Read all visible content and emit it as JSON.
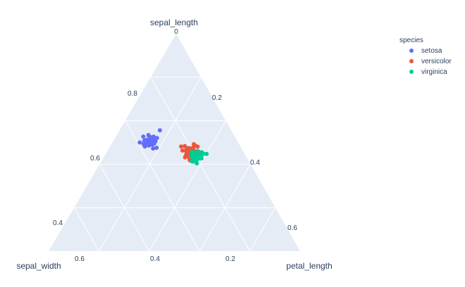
{
  "chart_data": {
    "type": "scatter",
    "subtype": "ternary",
    "axes": {
      "a": {
        "title": "sepal_length",
        "ticks": [
          "0",
          "0.2",
          "0.4",
          "0.6",
          "0.8"
        ],
        "tick_values": [
          0,
          0.2,
          0.4,
          0.6,
          0.8
        ]
      },
      "b": {
        "title": "sepal_width",
        "ticks": [
          "0.4",
          "0.6"
        ],
        "tick_values": [
          0.4,
          0.6
        ]
      },
      "c": {
        "title": "petal_length",
        "ticks": [
          "0.2",
          "0.4",
          "0.6"
        ],
        "tick_values": [
          0.2,
          0.4,
          0.6
        ]
      },
      "bottom_ticks": [
        "0.6",
        "0.4",
        "0.2"
      ]
    },
    "grid": true,
    "background_color": "#E5ECF6",
    "legend": {
      "title": "species",
      "placement": "top-right",
      "entries": [
        {
          "name": "setosa",
          "color": "#636EFA"
        },
        {
          "name": "versicolor",
          "color": "#EF553B"
        },
        {
          "name": "virginica",
          "color": "#00CC96"
        }
      ]
    },
    "series": [
      {
        "name": "setosa",
        "color": "#636EFA",
        "points": [
          {
            "a": 0.51,
            "b": 0.35,
            "c": 0.14
          },
          {
            "a": 0.49,
            "b": 0.3,
            "c": 0.14
          },
          {
            "a": 0.47,
            "b": 0.32,
            "c": 0.13
          },
          {
            "a": 0.46,
            "b": 0.31,
            "c": 0.15
          },
          {
            "a": 0.5,
            "b": 0.36,
            "c": 0.14
          },
          {
            "a": 0.54,
            "b": 0.39,
            "c": 0.17
          },
          {
            "a": 0.46,
            "b": 0.34,
            "c": 0.14
          },
          {
            "a": 0.5,
            "b": 0.34,
            "c": 0.15
          },
          {
            "a": 0.44,
            "b": 0.29,
            "c": 0.14
          },
          {
            "a": 0.49,
            "b": 0.31,
            "c": 0.15
          },
          {
            "a": 0.54,
            "b": 0.37,
            "c": 0.15
          },
          {
            "a": 0.48,
            "b": 0.34,
            "c": 0.16
          },
          {
            "a": 0.48,
            "b": 0.3,
            "c": 0.14
          },
          {
            "a": 0.43,
            "b": 0.3,
            "c": 0.11
          },
          {
            "a": 0.58,
            "b": 0.4,
            "c": 0.12
          },
          {
            "a": 0.57,
            "b": 0.44,
            "c": 0.15
          },
          {
            "a": 0.54,
            "b": 0.39,
            "c": 0.13
          },
          {
            "a": 0.51,
            "b": 0.35,
            "c": 0.14
          },
          {
            "a": 0.57,
            "b": 0.38,
            "c": 0.17
          },
          {
            "a": 0.51,
            "b": 0.38,
            "c": 0.15
          },
          {
            "a": 0.54,
            "b": 0.34,
            "c": 0.17
          },
          {
            "a": 0.51,
            "b": 0.37,
            "c": 0.15
          },
          {
            "a": 0.46,
            "b": 0.36,
            "c": 0.1
          },
          {
            "a": 0.51,
            "b": 0.33,
            "c": 0.17
          },
          {
            "a": 0.48,
            "b": 0.34,
            "c": 0.19
          },
          {
            "a": 0.5,
            "b": 0.3,
            "c": 0.16
          },
          {
            "a": 0.5,
            "b": 0.34,
            "c": 0.16
          },
          {
            "a": 0.52,
            "b": 0.35,
            "c": 0.15
          },
          {
            "a": 0.52,
            "b": 0.34,
            "c": 0.14
          },
          {
            "a": 0.47,
            "b": 0.32,
            "c": 0.16
          },
          {
            "a": 0.48,
            "b": 0.31,
            "c": 0.16
          },
          {
            "a": 0.54,
            "b": 0.34,
            "c": 0.15
          },
          {
            "a": 0.52,
            "b": 0.41,
            "c": 0.15
          },
          {
            "a": 0.55,
            "b": 0.42,
            "c": 0.14
          },
          {
            "a": 0.49,
            "b": 0.31,
            "c": 0.15
          },
          {
            "a": 0.5,
            "b": 0.32,
            "c": 0.12
          },
          {
            "a": 0.55,
            "b": 0.35,
            "c": 0.13
          },
          {
            "a": 0.49,
            "b": 0.36,
            "c": 0.14
          },
          {
            "a": 0.44,
            "b": 0.3,
            "c": 0.13
          },
          {
            "a": 0.51,
            "b": 0.34,
            "c": 0.15
          },
          {
            "a": 0.5,
            "b": 0.35,
            "c": 0.13
          },
          {
            "a": 0.45,
            "b": 0.23,
            "c": 0.13
          },
          {
            "a": 0.44,
            "b": 0.32,
            "c": 0.13
          },
          {
            "a": 0.5,
            "b": 0.35,
            "c": 0.16
          },
          {
            "a": 0.51,
            "b": 0.38,
            "c": 0.19
          },
          {
            "a": 0.48,
            "b": 0.3,
            "c": 0.14
          },
          {
            "a": 0.51,
            "b": 0.38,
            "c": 0.16
          },
          {
            "a": 0.46,
            "b": 0.32,
            "c": 0.14
          },
          {
            "a": 0.53,
            "b": 0.37,
            "c": 0.15
          },
          {
            "a": 0.5,
            "b": 0.33,
            "c": 0.14
          }
        ]
      },
      {
        "name": "versicolor",
        "color": "#EF553B",
        "points": [
          {
            "a": 0.7,
            "b": 0.32,
            "c": 0.47
          },
          {
            "a": 0.64,
            "b": 0.32,
            "c": 0.45
          },
          {
            "a": 0.69,
            "b": 0.31,
            "c": 0.49
          },
          {
            "a": 0.55,
            "b": 0.23,
            "c": 0.4
          },
          {
            "a": 0.65,
            "b": 0.28,
            "c": 0.46
          },
          {
            "a": 0.57,
            "b": 0.28,
            "c": 0.45
          },
          {
            "a": 0.63,
            "b": 0.33,
            "c": 0.47
          },
          {
            "a": 0.49,
            "b": 0.24,
            "c": 0.33
          },
          {
            "a": 0.66,
            "b": 0.29,
            "c": 0.46
          },
          {
            "a": 0.52,
            "b": 0.27,
            "c": 0.39
          },
          {
            "a": 0.5,
            "b": 0.2,
            "c": 0.35
          },
          {
            "a": 0.59,
            "b": 0.3,
            "c": 0.42
          },
          {
            "a": 0.6,
            "b": 0.22,
            "c": 0.4
          },
          {
            "a": 0.61,
            "b": 0.29,
            "c": 0.47
          },
          {
            "a": 0.56,
            "b": 0.29,
            "c": 0.36
          },
          {
            "a": 0.67,
            "b": 0.31,
            "c": 0.44
          },
          {
            "a": 0.56,
            "b": 0.3,
            "c": 0.45
          },
          {
            "a": 0.58,
            "b": 0.27,
            "c": 0.41
          },
          {
            "a": 0.62,
            "b": 0.22,
            "c": 0.45
          },
          {
            "a": 0.56,
            "b": 0.25,
            "c": 0.39
          },
          {
            "a": 0.59,
            "b": 0.32,
            "c": 0.48
          },
          {
            "a": 0.61,
            "b": 0.28,
            "c": 0.4
          },
          {
            "a": 0.63,
            "b": 0.25,
            "c": 0.49
          },
          {
            "a": 0.61,
            "b": 0.28,
            "c": 0.47
          },
          {
            "a": 0.64,
            "b": 0.29,
            "c": 0.43
          },
          {
            "a": 0.66,
            "b": 0.3,
            "c": 0.44
          },
          {
            "a": 0.68,
            "b": 0.28,
            "c": 0.48
          },
          {
            "a": 0.67,
            "b": 0.3,
            "c": 0.5
          },
          {
            "a": 0.6,
            "b": 0.29,
            "c": 0.45
          },
          {
            "a": 0.57,
            "b": 0.26,
            "c": 0.35
          },
          {
            "a": 0.55,
            "b": 0.24,
            "c": 0.38
          },
          {
            "a": 0.55,
            "b": 0.24,
            "c": 0.37
          },
          {
            "a": 0.58,
            "b": 0.27,
            "c": 0.39
          },
          {
            "a": 0.6,
            "b": 0.27,
            "c": 0.51
          },
          {
            "a": 0.54,
            "b": 0.3,
            "c": 0.45
          },
          {
            "a": 0.6,
            "b": 0.34,
            "c": 0.45
          },
          {
            "a": 0.67,
            "b": 0.31,
            "c": 0.47
          },
          {
            "a": 0.63,
            "b": 0.23,
            "c": 0.44
          },
          {
            "a": 0.56,
            "b": 0.3,
            "c": 0.41
          },
          {
            "a": 0.55,
            "b": 0.25,
            "c": 0.4
          },
          {
            "a": 0.55,
            "b": 0.26,
            "c": 0.44
          },
          {
            "a": 0.61,
            "b": 0.3,
            "c": 0.46
          },
          {
            "a": 0.58,
            "b": 0.26,
            "c": 0.4
          },
          {
            "a": 0.5,
            "b": 0.23,
            "c": 0.33
          },
          {
            "a": 0.56,
            "b": 0.27,
            "c": 0.42
          },
          {
            "a": 0.57,
            "b": 0.3,
            "c": 0.42
          },
          {
            "a": 0.57,
            "b": 0.29,
            "c": 0.42
          },
          {
            "a": 0.62,
            "b": 0.29,
            "c": 0.43
          },
          {
            "a": 0.51,
            "b": 0.25,
            "c": 0.3
          },
          {
            "a": 0.57,
            "b": 0.28,
            "c": 0.41
          }
        ]
      },
      {
        "name": "virginica",
        "color": "#00CC96",
        "points": [
          {
            "a": 0.63,
            "b": 0.33,
            "c": 0.6
          },
          {
            "a": 0.58,
            "b": 0.27,
            "c": 0.51
          },
          {
            "a": 0.71,
            "b": 0.3,
            "c": 0.59
          },
          {
            "a": 0.63,
            "b": 0.29,
            "c": 0.56
          },
          {
            "a": 0.65,
            "b": 0.3,
            "c": 0.58
          },
          {
            "a": 0.76,
            "b": 0.3,
            "c": 0.66
          },
          {
            "a": 0.49,
            "b": 0.25,
            "c": 0.45
          },
          {
            "a": 0.73,
            "b": 0.29,
            "c": 0.63
          },
          {
            "a": 0.67,
            "b": 0.25,
            "c": 0.58
          },
          {
            "a": 0.72,
            "b": 0.36,
            "c": 0.61
          },
          {
            "a": 0.65,
            "b": 0.32,
            "c": 0.51
          },
          {
            "a": 0.64,
            "b": 0.27,
            "c": 0.53
          },
          {
            "a": 0.68,
            "b": 0.3,
            "c": 0.55
          },
          {
            "a": 0.57,
            "b": 0.25,
            "c": 0.5
          },
          {
            "a": 0.58,
            "b": 0.28,
            "c": 0.51
          },
          {
            "a": 0.64,
            "b": 0.32,
            "c": 0.53
          },
          {
            "a": 0.65,
            "b": 0.3,
            "c": 0.55
          },
          {
            "a": 0.77,
            "b": 0.38,
            "c": 0.67
          },
          {
            "a": 0.77,
            "b": 0.26,
            "c": 0.69
          },
          {
            "a": 0.6,
            "b": 0.22,
            "c": 0.5
          },
          {
            "a": 0.69,
            "b": 0.32,
            "c": 0.57
          },
          {
            "a": 0.56,
            "b": 0.28,
            "c": 0.49
          },
          {
            "a": 0.77,
            "b": 0.28,
            "c": 0.67
          },
          {
            "a": 0.63,
            "b": 0.27,
            "c": 0.49
          },
          {
            "a": 0.67,
            "b": 0.33,
            "c": 0.57
          },
          {
            "a": 0.72,
            "b": 0.32,
            "c": 0.6
          },
          {
            "a": 0.62,
            "b": 0.28,
            "c": 0.48
          },
          {
            "a": 0.61,
            "b": 0.3,
            "c": 0.49
          },
          {
            "a": 0.64,
            "b": 0.28,
            "c": 0.56
          },
          {
            "a": 0.72,
            "b": 0.3,
            "c": 0.58
          },
          {
            "a": 0.74,
            "b": 0.28,
            "c": 0.61
          },
          {
            "a": 0.79,
            "b": 0.38,
            "c": 0.64
          },
          {
            "a": 0.64,
            "b": 0.28,
            "c": 0.56
          },
          {
            "a": 0.63,
            "b": 0.28,
            "c": 0.51
          },
          {
            "a": 0.61,
            "b": 0.26,
            "c": 0.56
          },
          {
            "a": 0.77,
            "b": 0.3,
            "c": 0.61
          },
          {
            "a": 0.63,
            "b": 0.34,
            "c": 0.56
          },
          {
            "a": 0.64,
            "b": 0.31,
            "c": 0.55
          },
          {
            "a": 0.6,
            "b": 0.3,
            "c": 0.48
          },
          {
            "a": 0.69,
            "b": 0.31,
            "c": 0.54
          },
          {
            "a": 0.67,
            "b": 0.31,
            "c": 0.56
          },
          {
            "a": 0.69,
            "b": 0.31,
            "c": 0.51
          },
          {
            "a": 0.58,
            "b": 0.27,
            "c": 0.51
          },
          {
            "a": 0.68,
            "b": 0.32,
            "c": 0.59
          },
          {
            "a": 0.67,
            "b": 0.33,
            "c": 0.57
          },
          {
            "a": 0.67,
            "b": 0.3,
            "c": 0.52
          },
          {
            "a": 0.63,
            "b": 0.25,
            "c": 0.5
          },
          {
            "a": 0.65,
            "b": 0.3,
            "c": 0.52
          },
          {
            "a": 0.62,
            "b": 0.34,
            "c": 0.54
          },
          {
            "a": 0.59,
            "b": 0.3,
            "c": 0.51
          }
        ]
      }
    ]
  }
}
